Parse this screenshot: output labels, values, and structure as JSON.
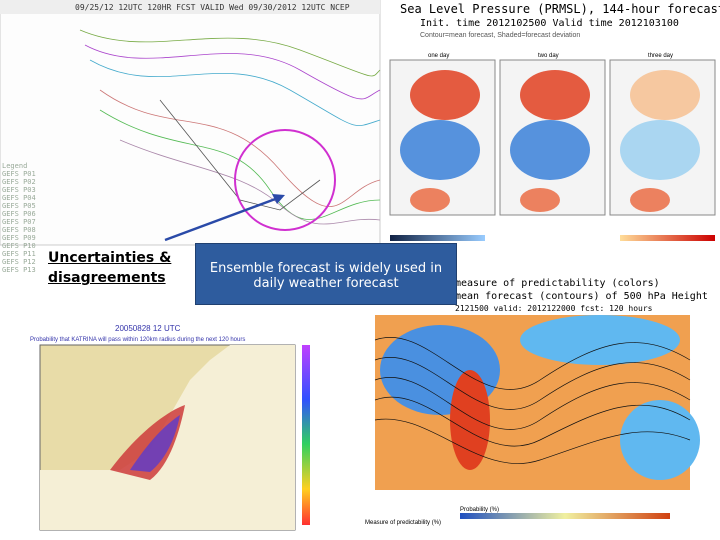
{
  "slide": {
    "callouts": {
      "uncertainties": "Uncertainties & disagreements",
      "ensemble": "Ensemble forecast is widely used in daily weather forecast"
    },
    "spaghetti": {
      "header": "09/25/12 12UTC   120HR FCST VALID Wed 09/30/2012 12UTC  NCEP",
      "legend": [
        "Legend",
        "GEFS P01",
        "GEFS P02",
        "GEFS P03",
        "GEFS P04",
        "GEFS P05",
        "GEFS P06",
        "GEFS P07",
        "GEFS P08",
        "GEFS P09",
        "GEFS P10",
        "GEFS P11",
        "GEFS P12",
        "GEFS P13"
      ]
    },
    "slp": {
      "title": "Sea Level Pressure (PRMSL), 144-hour forecast",
      "times": "Init. time 2012102500    Valid time 2012103100",
      "subtitle": "Contour=mean forecast, Shaded=forecast deviation",
      "panels": [
        "one day",
        "two day",
        "three day"
      ]
    },
    "katrina": {
      "header": "20050828 12 UTC",
      "caption": "Probability that KATRINA will pass within 120km radius during the next 120 hours"
    },
    "predictability": {
      "title": "measure of predictability (colors)",
      "subtitle": "mean forecast (contours) of 500 hPa Height",
      "times": "2121500 valid: 2012122000  fcst: 120 hours",
      "legend1": "Probability (%)",
      "legend2": "Measure of predictability (%)"
    }
  }
}
